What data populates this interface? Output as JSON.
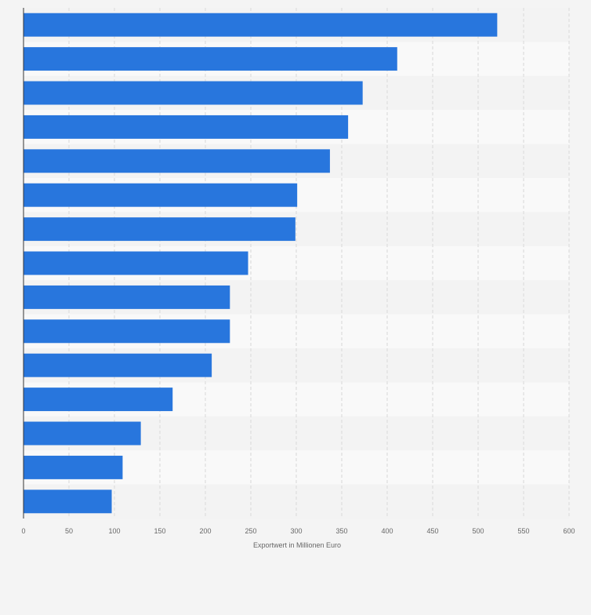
{
  "chart_data": {
    "type": "bar",
    "orientation": "horizontal",
    "categories": [
      "",
      "",
      "",
      "",
      "",
      "",
      "",
      "",
      "",
      "",
      "",
      "",
      "",
      "",
      ""
    ],
    "values": [
      521,
      411,
      373,
      357,
      337,
      301,
      299,
      247,
      227,
      227,
      207,
      164,
      129,
      109,
      97
    ],
    "xlabel": "Exportwert in Millionen Euro",
    "ylabel": "",
    "xlim": [
      0,
      600
    ],
    "x_ticks": [
      0,
      50,
      100,
      150,
      200,
      250,
      300,
      350,
      400,
      450,
      500,
      550,
      600
    ],
    "grid": true,
    "legend": "none",
    "colors": {
      "bar": "#2876dd",
      "background": "#f4f4f4",
      "band_light": "#f9f9f9",
      "band_dark": "#f3f3f3",
      "grid": "#d8d8d8",
      "axis": "#333333",
      "text": "#666666"
    }
  }
}
